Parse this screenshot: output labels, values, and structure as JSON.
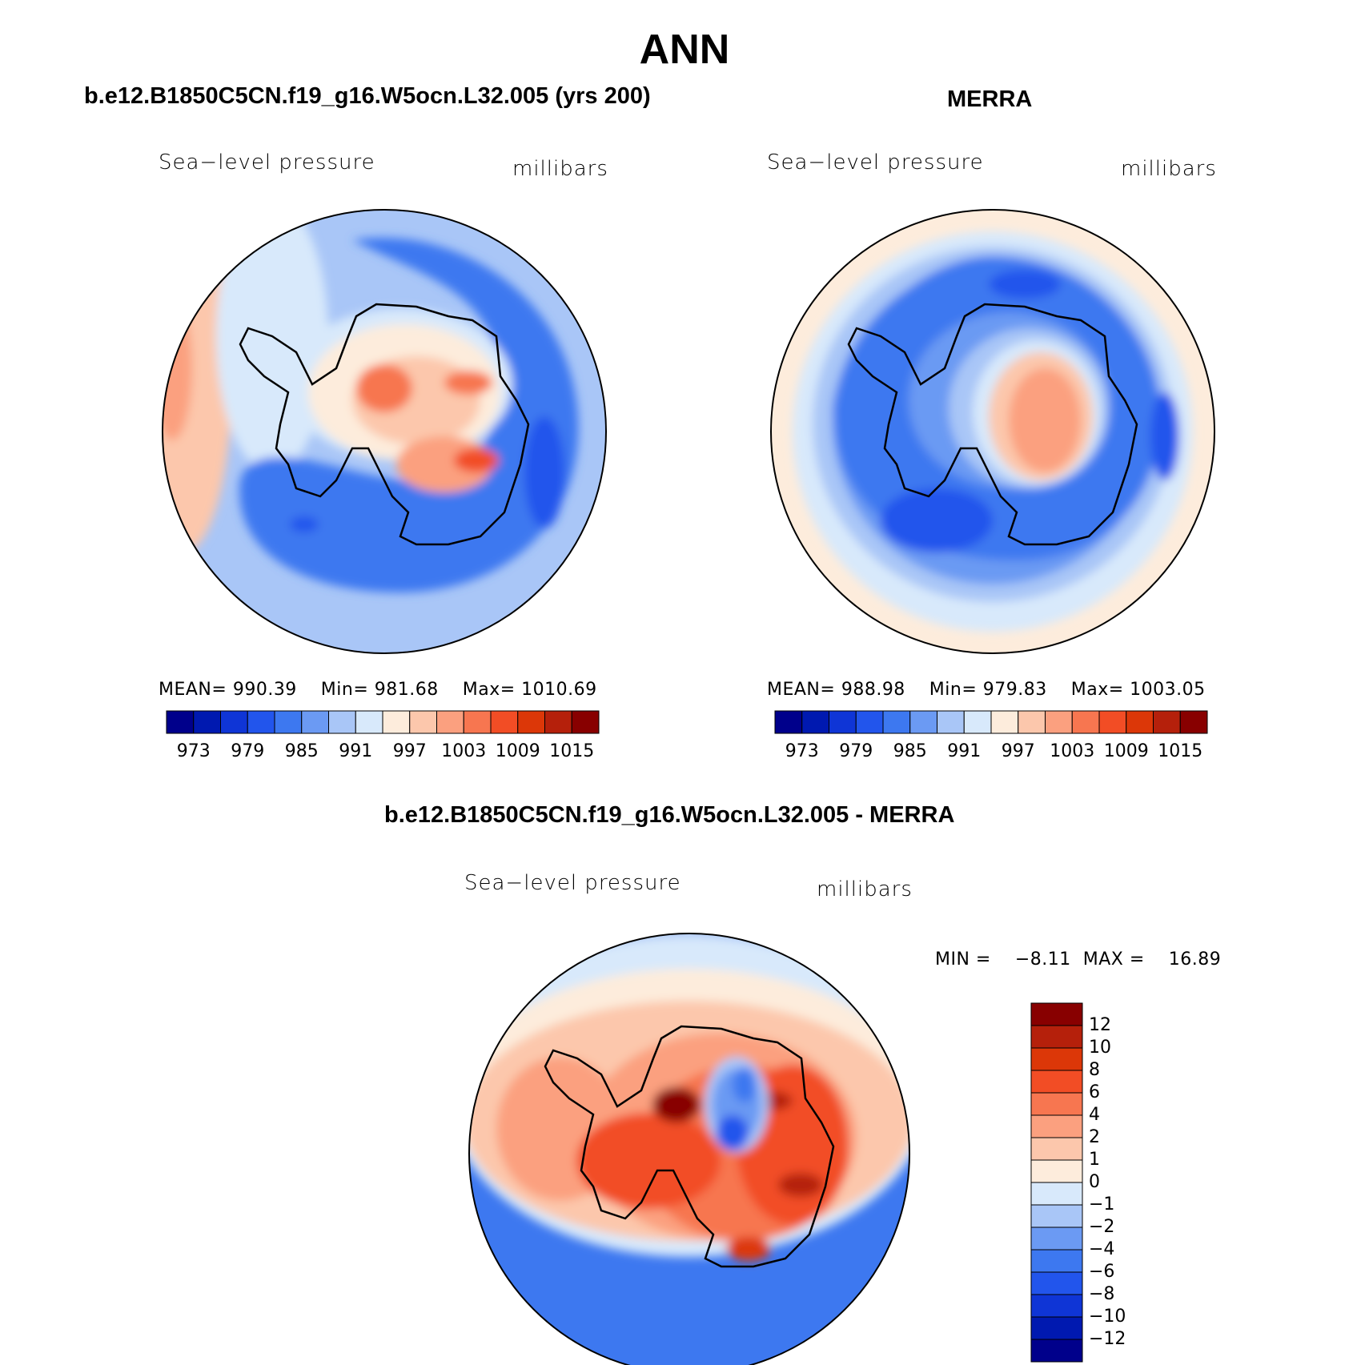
{
  "title": "ANN",
  "panels": [
    {
      "title": "b.e12.B1850C5CN.f19_g16.W5ocn.L32.005 (yrs 200)",
      "variable": "Sea−level pressure",
      "units": "millibars",
      "stats": {
        "mean_label": "MEAN=",
        "mean": "990.39",
        "min_label": "Min=",
        "min": "981.68",
        "max_label": "Max=",
        "max": "1010.69"
      }
    },
    {
      "title": "MERRA",
      "variable": "Sea−level pressure",
      "units": "millibars",
      "stats": {
        "mean_label": "MEAN=",
        "mean": "988.98",
        "min_label": "Min=",
        "min": "979.83",
        "max_label": "Max=",
        "max": "1003.05"
      }
    },
    {
      "title": "b.e12.B1850C5CN.f19_g16.W5ocn.L32.005 - MERRA",
      "variable": "Sea−level pressure",
      "units": "millibars",
      "stats": {
        "min_label": "MIN =",
        "min": "−8.11",
        "max_label": "MAX =",
        "max": "16.89"
      }
    }
  ],
  "chart_data": [
    {
      "type": "heatmap",
      "title": "b.e12.B1850C5CN.f19_g16.W5ocn.L32.005 (yrs 200)",
      "variable": "Sea-level pressure",
      "units": "millibars",
      "projection": "south polar stereographic",
      "mean": 990.39,
      "min": 981.68,
      "max": 1010.69,
      "contour_levels": [
        970,
        973,
        976,
        979,
        982,
        985,
        988,
        991,
        994,
        997,
        1000,
        1003,
        1006,
        1009,
        1012,
        1015
      ],
      "colorbar_tick_labels": [
        "973",
        "979",
        "985",
        "991",
        "997",
        "1003",
        "1009",
        "1015"
      ]
    },
    {
      "type": "heatmap",
      "title": "MERRA",
      "variable": "Sea-level pressure",
      "units": "millibars",
      "projection": "south polar stereographic",
      "mean": 988.98,
      "min": 979.83,
      "max": 1003.05,
      "contour_levels": [
        970,
        973,
        976,
        979,
        982,
        985,
        988,
        991,
        994,
        997,
        1000,
        1003,
        1006,
        1009,
        1012,
        1015
      ],
      "colorbar_tick_labels": [
        "973",
        "979",
        "985",
        "991",
        "997",
        "1003",
        "1009",
        "1015"
      ]
    },
    {
      "type": "heatmap",
      "title": "b.e12.B1850C5CN.f19_g16.W5ocn.L32.005 - MERRA",
      "variable": "Sea-level pressure",
      "units": "millibars",
      "projection": "south polar stereographic",
      "min": -8.11,
      "max": 16.89,
      "contour_levels": [
        -12,
        -10,
        -8,
        -6,
        -4,
        -2,
        -1,
        0,
        1,
        2,
        4,
        6,
        8,
        10,
        12
      ],
      "colorbar_tick_labels": [
        "12",
        "10",
        "8",
        "6",
        "4",
        "2",
        "1",
        "0",
        "−1",
        "−2",
        "−4",
        "−6",
        "−8",
        "−10",
        "−12"
      ]
    }
  ],
  "palette": [
    "#00008b",
    "#0019b0",
    "#0f35d6",
    "#2255ec",
    "#3d78f0",
    "#6b9af3",
    "#a9c6f7",
    "#d8e9fb",
    "#fdecdc",
    "#fcc7ac",
    "#fba07f",
    "#f77650",
    "#f24d25",
    "#dc3708",
    "#b5200b",
    "#880000"
  ]
}
